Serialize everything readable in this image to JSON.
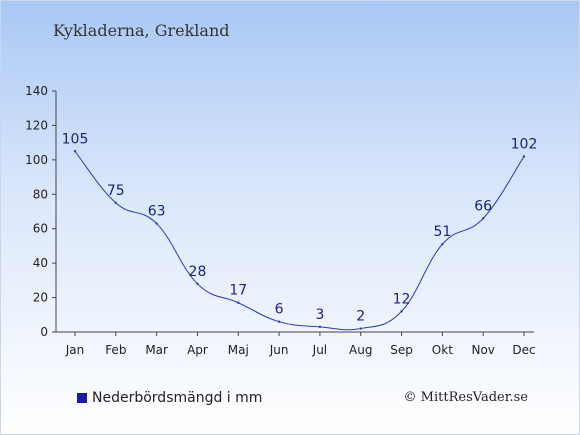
{
  "colors": {
    "line": "#2b3ab5",
    "legend_swatch": "#1a1aa6",
    "axis": "#444444"
  },
  "chart_data": {
    "type": "line",
    "title": "Kykladerna, Grekland",
    "categories": [
      "Jan",
      "Feb",
      "Mar",
      "Apr",
      "Maj",
      "Jun",
      "Jul",
      "Aug",
      "Sep",
      "Okt",
      "Nov",
      "Dec"
    ],
    "series": [
      {
        "name": "Nederbördsmängd i mm",
        "values": [
          105,
          75,
          63,
          28,
          17,
          6,
          3,
          2,
          12,
          51,
          66,
          102
        ]
      }
    ],
    "ylim": [
      0,
      140
    ],
    "yticks": [
      0,
      20,
      40,
      60,
      80,
      100,
      120,
      140
    ],
    "grid": false,
    "legend_position": "bottom-left"
  },
  "copyright": "© MittResVader.se"
}
